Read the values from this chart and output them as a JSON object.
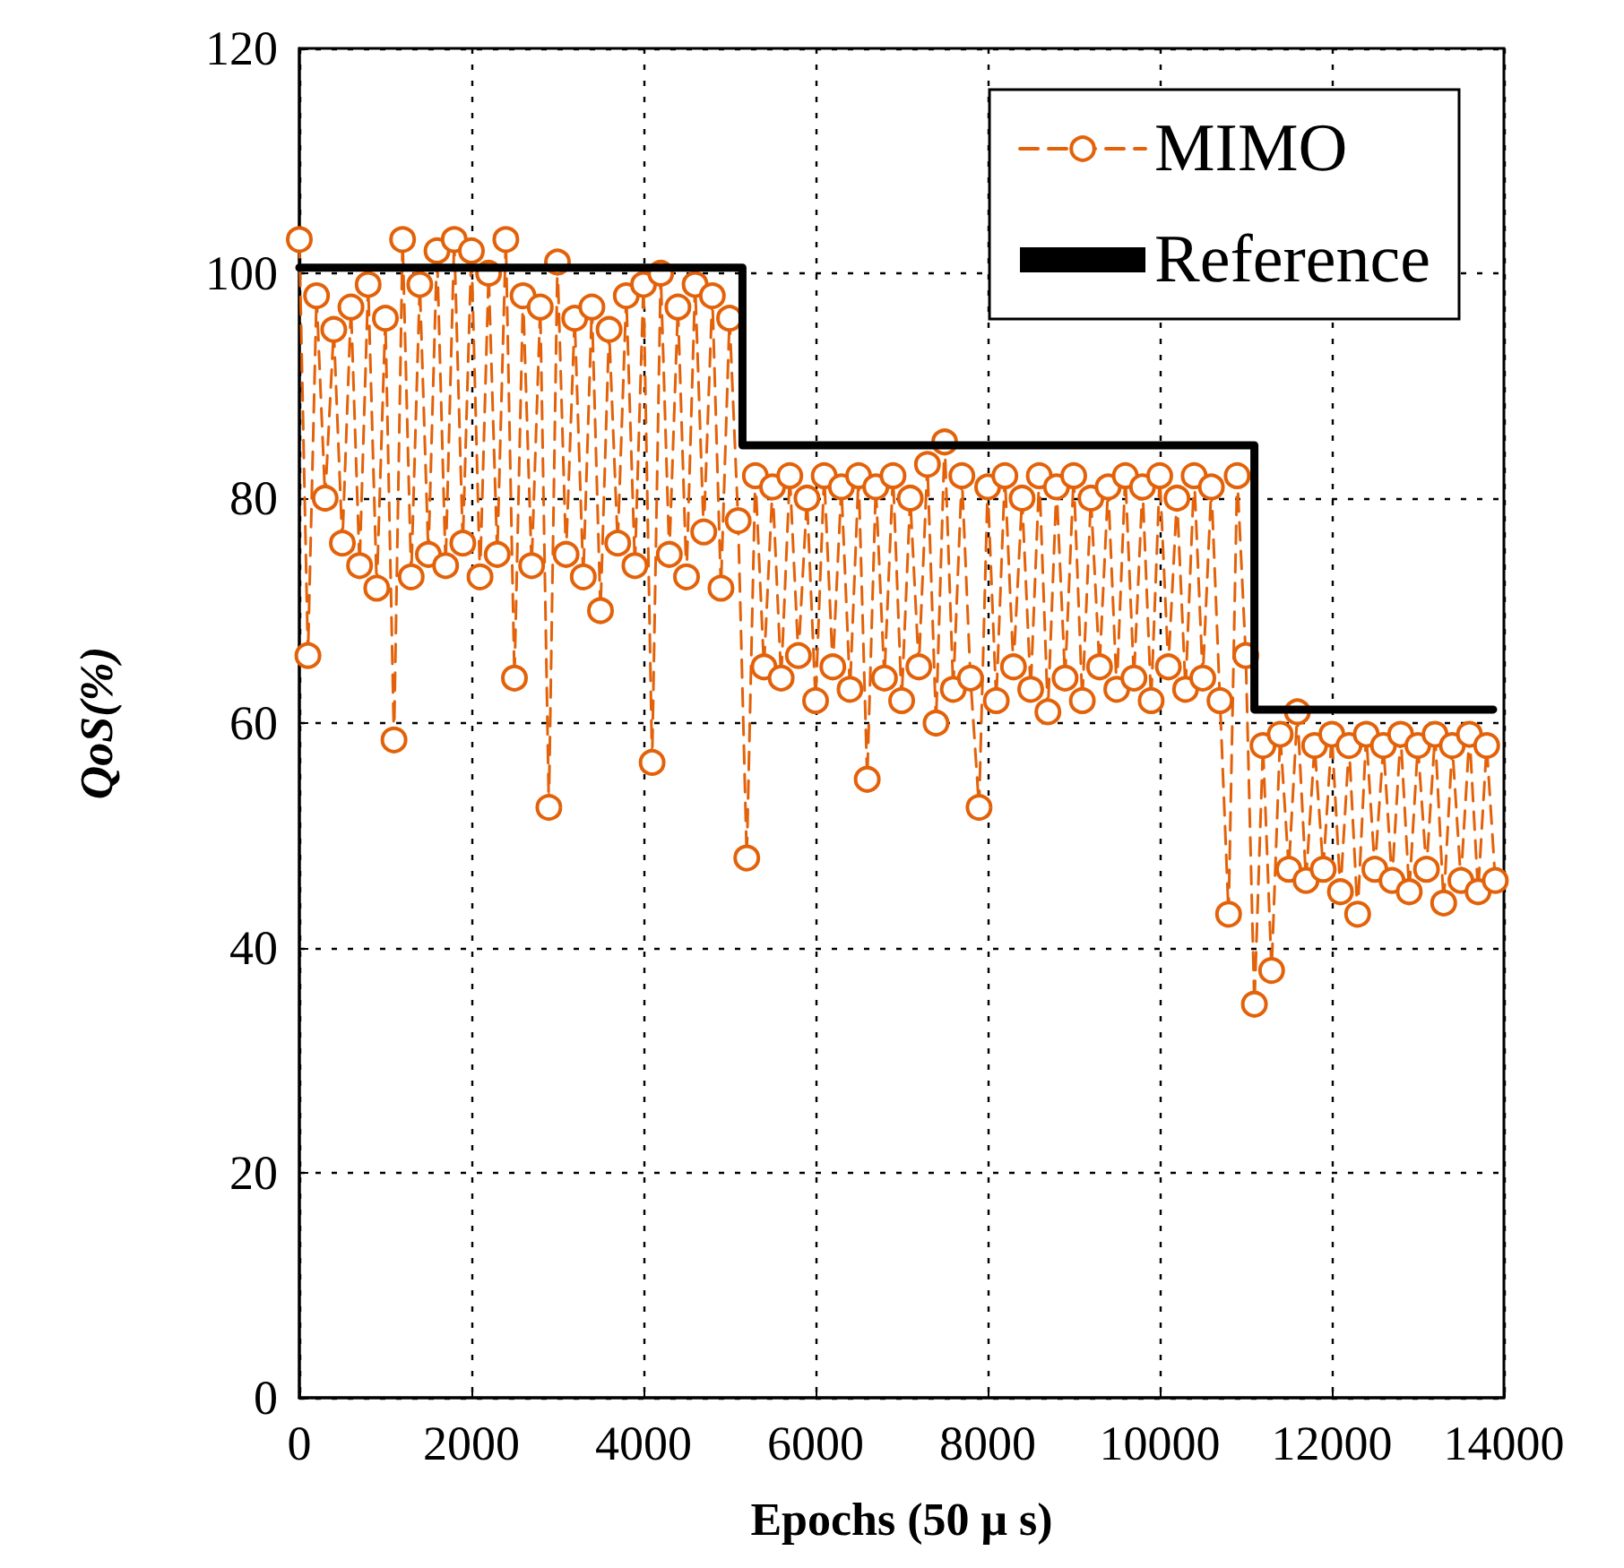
{
  "chart_data": {
    "type": "line",
    "xlabel": "Epochs (50 μ s)",
    "ylabel": "QoS(%)",
    "xlim": [
      0,
      14000
    ],
    "xticks": [
      0,
      2000,
      4000,
      6000,
      8000,
      10000,
      12000,
      14000
    ],
    "ylim": [
      0,
      120
    ],
    "yticks": [
      0,
      20,
      40,
      60,
      80,
      100,
      120
    ],
    "grid": true,
    "legend": "top right",
    "series": [
      {
        "name": "MIMO",
        "color": "#e36209",
        "marker": "circle",
        "line_style": "dashed",
        "x": [
          0,
          100,
          200,
          300,
          400,
          500,
          600,
          700,
          800,
          900,
          1000,
          1100,
          1200,
          1300,
          1400,
          1500,
          1600,
          1700,
          1800,
          1900,
          2000,
          2100,
          2200,
          2300,
          2400,
          2500,
          2600,
          2700,
          2800,
          2900,
          3000,
          3100,
          3200,
          3300,
          3400,
          3500,
          3600,
          3700,
          3800,
          3900,
          4000,
          4100,
          4200,
          4300,
          4400,
          4500,
          4600,
          4700,
          4800,
          4900,
          5000,
          5100,
          5200,
          5300,
          5400,
          5500,
          5600,
          5700,
          5800,
          5900,
          6000,
          6100,
          6200,
          6300,
          6400,
          6500,
          6600,
          6700,
          6800,
          6900,
          7000,
          7100,
          7200,
          7300,
          7400,
          7500,
          7600,
          7700,
          7800,
          7900,
          8000,
          8100,
          8200,
          8300,
          8400,
          8500,
          8600,
          8700,
          8800,
          8900,
          9000,
          9100,
          9200,
          9300,
          9400,
          9500,
          9600,
          9700,
          9800,
          9900,
          10000,
          10100,
          10200,
          10300,
          10400,
          10500,
          10600,
          10700,
          10800,
          10900,
          11000,
          11100,
          11200,
          11300,
          11400,
          11500,
          11600,
          11700,
          11800,
          11900,
          12000,
          12100,
          12200,
          12300,
          12400,
          12500,
          12600,
          12700,
          12800,
          12900,
          13000,
          13100,
          13200,
          13300,
          13400,
          13500,
          13600,
          13700,
          13800,
          13900
        ],
        "values": [
          103,
          66,
          98,
          80,
          95,
          76,
          97,
          74,
          99,
          72,
          96,
          58.5,
          103,
          73,
          99,
          75,
          102,
          74,
          103,
          76,
          102,
          73,
          100,
          75,
          103,
          64,
          98,
          74,
          97,
          52.5,
          101,
          75,
          96,
          73,
          97,
          70,
          95,
          76,
          98,
          74,
          99,
          56.5,
          100,
          75,
          97,
          73,
          99,
          77,
          98,
          72,
          96,
          78,
          48,
          82,
          65,
          81,
          64,
          82,
          66,
          80,
          62,
          82,
          65,
          81,
          63,
          82,
          55,
          81,
          64,
          82,
          62,
          80,
          65,
          83,
          60,
          85,
          63,
          82,
          64,
          52.5,
          81,
          62,
          82,
          65,
          80,
          63,
          82,
          61,
          81,
          64,
          82,
          62,
          80,
          65,
          81,
          63,
          82,
          64,
          81,
          62,
          82,
          65,
          80,
          63,
          82,
          64,
          81,
          62,
          43,
          82,
          66,
          35,
          58,
          38,
          59,
          47,
          61,
          46,
          58,
          47,
          59,
          45,
          58,
          43,
          59,
          47,
          58,
          46,
          59,
          45,
          58,
          47,
          59,
          44,
          58,
          46,
          59,
          45,
          58,
          46
        ]
      },
      {
        "name": "Reference",
        "type": "step",
        "color": "#000000",
        "marker": "none",
        "line_style": "solid",
        "x": [
          0,
          5150,
          11100,
          13875
        ],
        "values": [
          100.5,
          84.7,
          61.2,
          61.2
        ]
      }
    ]
  }
}
